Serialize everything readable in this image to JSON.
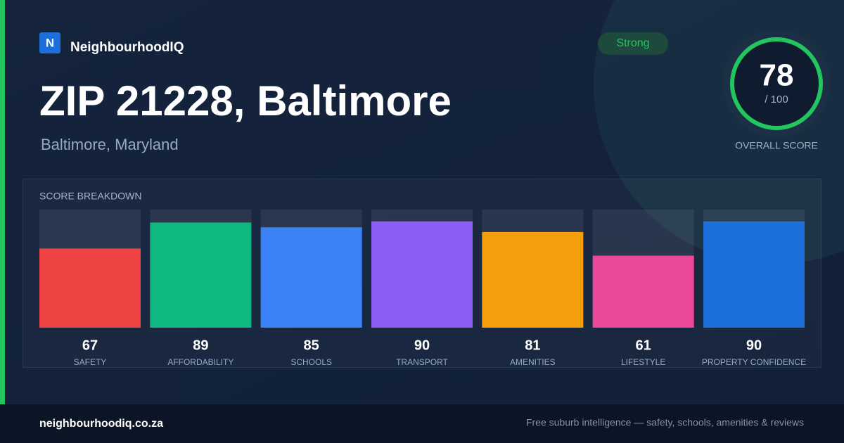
{
  "brand": {
    "logo_letter": "N",
    "name": "NeighbourhoodIQ"
  },
  "title": "ZIP 21228, Baltimore",
  "subtitle": "Baltimore, Maryland",
  "badge": "Strong",
  "overall": {
    "score": "78",
    "out_of": "/ 100",
    "label": "OVERALL SCORE"
  },
  "chart_data": {
    "type": "bar",
    "title": "SCORE BREAKDOWN",
    "categories": [
      "SAFETY",
      "AFFORDABILITY",
      "SCHOOLS",
      "TRANSPORT",
      "AMENITIES",
      "LIFESTYLE",
      "PROPERTY CONFIDENCE"
    ],
    "values": [
      67,
      89,
      85,
      90,
      81,
      61,
      90
    ],
    "colors": [
      "#ef4444",
      "#10b981",
      "#3b82f6",
      "#8b5cf6",
      "#f59e0b",
      "#ec4899",
      "#1d6fdb"
    ],
    "ylim": [
      0,
      100
    ]
  },
  "footer": {
    "site": "neighbourhoodiq.co.za",
    "tagline": "Free suburb intelligence — safety, schools, amenities & reviews"
  }
}
